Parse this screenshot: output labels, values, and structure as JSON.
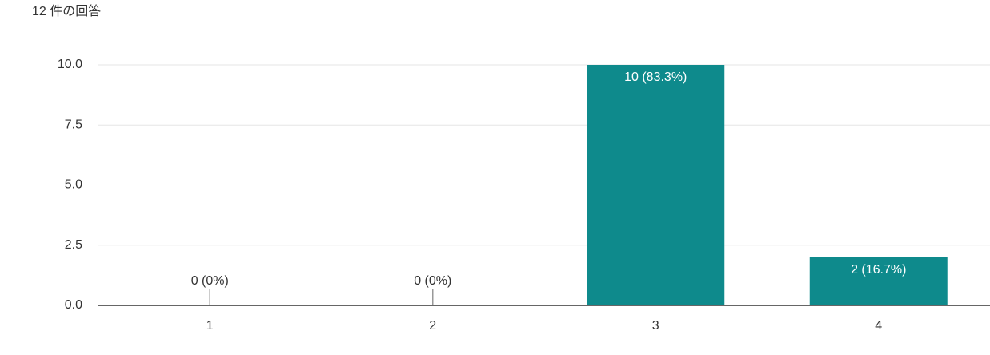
{
  "chart_data": {
    "type": "bar",
    "title": "12 件の回答",
    "categories": [
      "1",
      "2",
      "3",
      "4"
    ],
    "values": [
      0,
      0,
      10,
      2
    ],
    "value_labels": [
      "0 (0%)",
      "0 (0%)",
      "10 (83.3%)",
      "2 (16.7%)"
    ],
    "color": "#0e8a8c",
    "ylim": [
      0,
      10
    ],
    "yticks": [
      {
        "value": 0,
        "label": "0.0"
      },
      2.5,
      {
        "value": 5,
        "label": "5.0"
      },
      7.5,
      {
        "value": 10,
        "label": "10.0"
      }
    ],
    "grid": true
  }
}
